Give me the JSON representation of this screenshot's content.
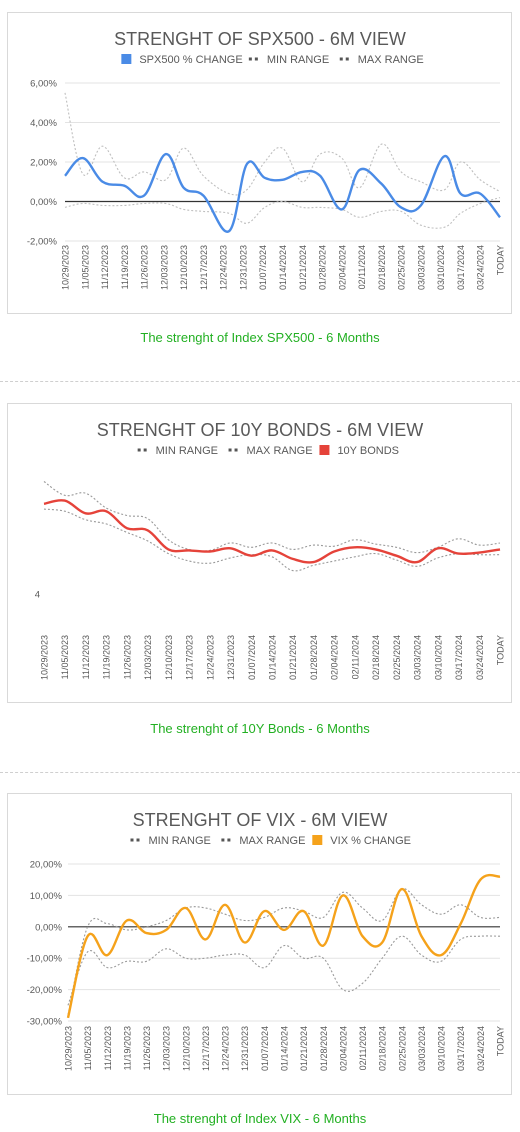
{
  "dates": [
    "10/29/2023",
    "11/05/2023",
    "11/12/2023",
    "11/19/2023",
    "11/26/2023",
    "12/03/2023",
    "12/10/2023",
    "12/17/2023",
    "12/24/2023",
    "12/31/2023",
    "01/07/2024",
    "01/14/2024",
    "01/21/2024",
    "01/28/2024",
    "02/04/2024",
    "02/11/2024",
    "02/18/2024",
    "02/25/2024",
    "03/03/2024",
    "03/10/2024",
    "03/17/2024",
    "03/24/2024",
    "TODAY"
  ],
  "chart_data": [
    {
      "type": "line",
      "title": "STRENGHT OF SPX500 - 6M VIEW",
      "caption": "The strenght of Index SPX500 - 6 Months",
      "ylim": [
        -2,
        6
      ],
      "y_ticks": [
        -2,
        0,
        2,
        4,
        6
      ],
      "y_tick_labels": [
        "-2,00%",
        "0,00%",
        "2,00%",
        "4,00%",
        "6,00%"
      ],
      "grid": true,
      "legend_position": "top",
      "legend": [
        "SPX500 % CHANGE",
        "MIN RANGE",
        "MAX RANGE"
      ],
      "x_points": [
        0,
        0.9,
        1.9,
        3,
        4,
        5.1,
        6,
        7,
        8.3,
        9.2,
        10.1,
        11,
        12,
        12.9,
        14,
        14.9,
        16,
        17,
        18,
        19.2,
        20,
        21,
        22
      ],
      "series": [
        {
          "name": "SPX500 % CHANGE",
          "role": "main",
          "color": "#4a8be6",
          "values": [
            1.3,
            2.2,
            1.0,
            0.8,
            0.3,
            2.4,
            0.7,
            0.3,
            -1.5,
            1.9,
            1.2,
            1.1,
            1.5,
            1.3,
            -0.4,
            1.6,
            0.9,
            -0.3,
            -0.2,
            2.3,
            0.4,
            0.4,
            -0.8
          ]
        },
        {
          "name": "MIN RANGE",
          "role": "min",
          "color": "#bfbfbf",
          "values": [
            -0.3,
            -0.1,
            -0.2,
            -0.2,
            -0.1,
            -0.1,
            -0.4,
            -0.5,
            -0.6,
            -1.1,
            -0.3,
            0.0,
            -0.3,
            -0.3,
            -0.4,
            -0.8,
            -0.5,
            -0.5,
            -1.2,
            -1.3,
            -0.6,
            -0.1,
            0.2
          ]
        },
        {
          "name": "MAX RANGE",
          "role": "max",
          "color": "#bfbfbf",
          "values": [
            5.5,
            1.4,
            2.8,
            1.2,
            1.5,
            1.1,
            2.7,
            1.3,
            0.4,
            0.6,
            2.0,
            2.7,
            1.0,
            2.4,
            2.2,
            0.7,
            2.9,
            1.5,
            1.0,
            0.6,
            2.0,
            1.1,
            0.5
          ]
        }
      ]
    },
    {
      "type": "line",
      "title": "STRENGHT OF 10Y BONDS - 6M VIEW",
      "caption": "The strenght of 10Y Bonds - 6 Months",
      "ylim": [
        3.65,
        5.15
      ],
      "y_ticks": [
        4
      ],
      "y_tick_labels": [
        "4"
      ],
      "grid": false,
      "legend_position": "top",
      "legend": [
        "MIN RANGE",
        "MAX RANGE",
        "10Y BONDS"
      ],
      "x_points": [
        0,
        1,
        2,
        3,
        4,
        5,
        6,
        7,
        8,
        9,
        10,
        11,
        12,
        13,
        14,
        15,
        16,
        17,
        18,
        19,
        20,
        21,
        22
      ],
      "series": [
        {
          "name": "10Y BONDS",
          "role": "main",
          "color": "#e5433a",
          "values": [
            4.85,
            4.88,
            4.76,
            4.78,
            4.62,
            4.6,
            4.42,
            4.41,
            4.4,
            4.43,
            4.36,
            4.41,
            4.33,
            4.3,
            4.4,
            4.44,
            4.42,
            4.36,
            4.3,
            4.43,
            4.38,
            4.39,
            4.42
          ]
        },
        {
          "name": "MIN RANGE",
          "role": "min",
          "color": "#9a9a9a",
          "values": [
            4.8,
            4.78,
            4.7,
            4.66,
            4.58,
            4.5,
            4.38,
            4.31,
            4.29,
            4.34,
            4.37,
            4.35,
            4.22,
            4.27,
            4.31,
            4.35,
            4.38,
            4.32,
            4.26,
            4.34,
            4.38,
            4.37,
            4.37
          ]
        },
        {
          "name": "MAX RANGE",
          "role": "max",
          "color": "#9a9a9a",
          "values": [
            5.06,
            4.93,
            4.95,
            4.81,
            4.74,
            4.71,
            4.51,
            4.42,
            4.41,
            4.48,
            4.44,
            4.48,
            4.42,
            4.46,
            4.45,
            4.51,
            4.47,
            4.44,
            4.39,
            4.44,
            4.52,
            4.46,
            4.48
          ]
        }
      ]
    },
    {
      "type": "line",
      "title": "STRENGHT OF VIX - 6M VIEW",
      "caption": "The strenght of Index VIX - 6 Months",
      "ylim": [
        -30,
        20
      ],
      "y_ticks": [
        -30,
        -20,
        -10,
        0,
        10,
        20
      ],
      "y_tick_labels": [
        "-30,00%",
        "-20,00%",
        "-10,00%",
        "0,00%",
        "10,00%",
        "20,00%"
      ],
      "grid": true,
      "legend_position": "top",
      "legend": [
        "MIN RANGE",
        "MAX RANGE",
        "VIX % CHANGE"
      ],
      "x_points": [
        0,
        1,
        2,
        3,
        4,
        5,
        6,
        7,
        8,
        9,
        10,
        11,
        12,
        13,
        14,
        15,
        16,
        17,
        18,
        19,
        20,
        21,
        22
      ],
      "series": [
        {
          "name": "VIX % CHANGE",
          "role": "main",
          "color": "#f5a21b",
          "values": [
            -29,
            -3,
            -9,
            2,
            -2,
            -1,
            6,
            -4,
            7,
            -5,
            5,
            -1,
            5,
            -6,
            10,
            -3,
            -5,
            12,
            -3,
            -9,
            1,
            15,
            16
          ]
        },
        {
          "name": "MIN RANGE",
          "role": "min",
          "color": "#9a9a9a",
          "values": [
            -25,
            -8,
            -13,
            -11,
            -11,
            -7,
            -10,
            -10,
            -9,
            -9,
            -13,
            -6,
            -10,
            -10,
            -20,
            -18,
            -10,
            -3,
            -9,
            -11,
            -4,
            -3,
            -3
          ]
        },
        {
          "name": "MAX RANGE",
          "role": "max",
          "color": "#9a9a9a",
          "values": [
            -28,
            0,
            1,
            -1,
            0,
            2,
            6,
            6,
            4,
            2,
            3,
            6,
            5,
            3,
            11,
            6,
            2,
            12,
            7,
            4,
            7,
            3,
            3
          ]
        }
      ]
    }
  ]
}
